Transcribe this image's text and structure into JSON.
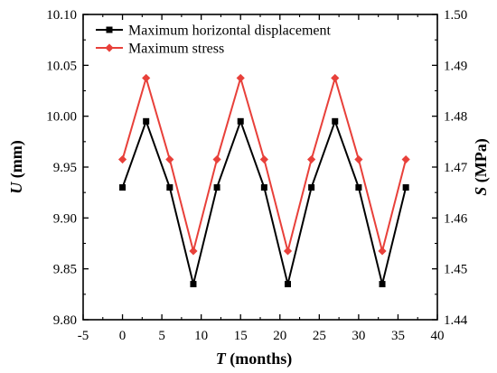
{
  "chart_data": {
    "type": "line",
    "x": [
      0,
      3,
      6,
      9,
      12,
      15,
      18,
      21,
      24,
      27,
      30,
      33,
      36
    ],
    "xlabel_var": "T",
    "xlabel_unit": "(months)",
    "xlim": [
      -5,
      40
    ],
    "xticks": [
      "-5",
      "0",
      "5",
      "10",
      "15",
      "20",
      "25",
      "30",
      "35",
      "40"
    ],
    "ylabel_left_var": "U",
    "ylabel_left_unit": "(mm)",
    "ylim_left": [
      9.8,
      10.1
    ],
    "yticks_left": [
      "9.80",
      "9.85",
      "9.90",
      "9.95",
      "10.00",
      "10.05",
      "10.10"
    ],
    "ylabel_right_var": "S",
    "ylabel_right_unit": "(MPa)",
    "ylim_right": [
      1.44,
      1.5
    ],
    "yticks_right": [
      "1.44",
      "1.45",
      "1.46",
      "1.47",
      "1.48",
      "1.49",
      "1.50"
    ],
    "legend_position": "top-left",
    "grid": false,
    "series": [
      {
        "name": "Maximum horizontal displacement",
        "axis": "left",
        "color": "#000000",
        "marker": "square",
        "values": [
          9.93,
          9.995,
          9.93,
          9.835,
          9.93,
          9.995,
          9.93,
          9.835,
          9.93,
          9.995,
          9.93,
          9.835,
          9.93
        ]
      },
      {
        "name": "Maximum stress",
        "axis": "right",
        "color": "#e8403a",
        "marker": "diamond",
        "values": [
          1.4715,
          1.4875,
          1.4715,
          1.4535,
          1.4715,
          1.4875,
          1.4715,
          1.4535,
          1.4715,
          1.4875,
          1.4715,
          1.4535,
          1.4715
        ]
      }
    ]
  }
}
